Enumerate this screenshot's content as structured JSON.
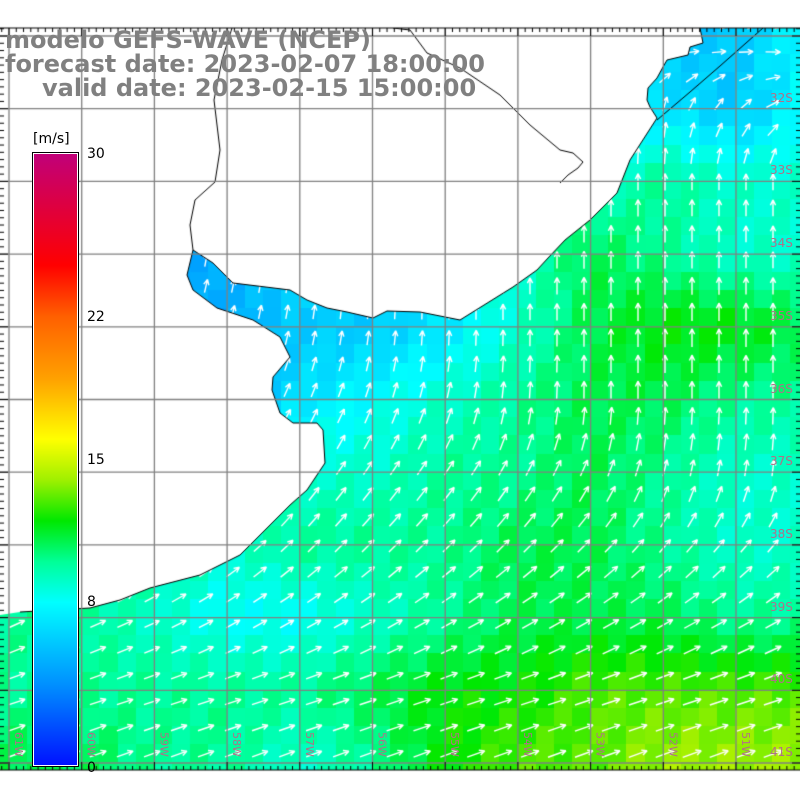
{
  "title": {
    "line1": "modelo GEFS-WAVE (NCEP)",
    "line2": "forecast date: 2023-02-07 18:00:00",
    "line3": "valid date: 2023-02-15 15:00:00"
  },
  "colorbar": {
    "unit": "[m/s]",
    "min": 0,
    "max": 30,
    "labels": [
      "30",
      "22",
      "15",
      "8",
      "0"
    ],
    "label_values": [
      30,
      22,
      15,
      8,
      0
    ],
    "stops": [
      {
        "v": 0,
        "c": "#0010ff"
      },
      {
        "v": 4,
        "c": "#0090ff"
      },
      {
        "v": 8,
        "c": "#00ffff"
      },
      {
        "v": 10,
        "c": "#00ff98"
      },
      {
        "v": 12,
        "c": "#00e800"
      },
      {
        "v": 14,
        "c": "#a0f000"
      },
      {
        "v": 16,
        "c": "#ffff00"
      },
      {
        "v": 19,
        "c": "#ffa000"
      },
      {
        "v": 22,
        "c": "#ff6000"
      },
      {
        "v": 24.5,
        "c": "#ff0000"
      },
      {
        "v": 30,
        "c": "#c0007a"
      }
    ]
  },
  "lat_labels": [
    "32S",
    "33S",
    "34S",
    "35S",
    "36S",
    "37S",
    "38S",
    "39S",
    "40S",
    "41S"
  ],
  "lon_labels": [
    "61W",
    "60W",
    "59W",
    "58W",
    "57W",
    "56W",
    "55W",
    "54W",
    "53W",
    "52W",
    "51W"
  ],
  "field": {
    "lats": [
      "31S",
      "32S",
      "33S",
      "34S",
      "35S",
      "36S",
      "37S",
      "38S",
      "39S",
      "40S",
      "41S"
    ],
    "lons": [
      "61W",
      "60W",
      "59W",
      "58W",
      "57W",
      "56W",
      "55W",
      "54W",
      "53W",
      "52W",
      "51W",
      "50W"
    ],
    "speed_ms": [
      [
        8,
        8,
        8,
        8,
        8,
        8,
        8,
        8,
        7,
        6,
        6,
        8
      ],
      [
        7,
        7,
        7,
        7,
        7,
        7,
        7,
        7,
        7,
        7,
        6,
        8
      ],
      [
        7,
        7,
        7,
        7,
        7,
        7,
        7,
        8,
        9,
        10,
        9,
        9
      ],
      [
        6,
        6,
        5,
        5,
        7,
        7,
        8,
        9,
        11,
        10,
        9,
        9
      ],
      [
        6,
        6,
        5,
        5,
        6,
        6,
        7,
        9,
        11,
        12,
        12,
        11
      ],
      [
        6,
        6,
        5,
        5,
        7,
        8,
        9,
        10,
        11,
        11,
        10,
        10
      ],
      [
        8,
        8,
        8,
        8,
        9,
        9,
        10,
        10,
        11,
        10,
        9,
        9
      ],
      [
        10,
        10,
        10,
        9,
        10,
        10,
        10,
        11,
        11,
        10,
        9,
        9
      ],
      [
        10,
        10,
        9,
        8,
        8,
        9,
        10,
        11,
        11,
        11,
        10,
        10
      ],
      [
        10,
        10,
        10,
        10,
        10,
        11,
        12,
        12,
        13,
        13,
        13,
        13
      ],
      [
        11,
        11,
        10,
        10,
        9,
        10,
        12,
        13,
        13,
        14,
        14,
        14
      ]
    ],
    "direction_deg": [
      [
        100,
        100,
        100,
        100,
        100,
        100,
        100,
        100,
        100,
        100,
        100,
        100
      ],
      [
        0,
        0,
        0,
        0,
        0,
        0,
        0,
        0,
        0,
        10,
        40,
        80
      ],
      [
        0,
        0,
        0,
        0,
        0,
        0,
        0,
        0,
        0,
        0,
        0,
        0
      ],
      [
        10,
        10,
        10,
        10,
        5,
        0,
        0,
        0,
        0,
        0,
        0,
        0
      ],
      [
        20,
        20,
        20,
        15,
        10,
        5,
        0,
        0,
        0,
        0,
        0,
        0
      ],
      [
        40,
        40,
        35,
        30,
        25,
        20,
        15,
        5,
        0,
        0,
        0,
        0
      ],
      [
        45,
        45,
        45,
        40,
        35,
        35,
        35,
        30,
        25,
        15,
        10,
        5
      ],
      [
        55,
        55,
        55,
        50,
        45,
        45,
        45,
        45,
        45,
        40,
        40,
        40
      ],
      [
        65,
        65,
        65,
        60,
        60,
        60,
        60,
        60,
        60,
        60,
        60,
        60
      ],
      [
        72,
        72,
        72,
        72,
        72,
        72,
        72,
        72,
        72,
        72,
        72,
        72
      ],
      [
        70,
        70,
        70,
        70,
        70,
        70,
        70,
        70,
        70,
        70,
        70,
        70
      ]
    ]
  },
  "colors": {
    "grid": "#808080",
    "land": "#ffffff",
    "coast": "#000000",
    "arrow": "#ffffff",
    "title": "#808080"
  }
}
